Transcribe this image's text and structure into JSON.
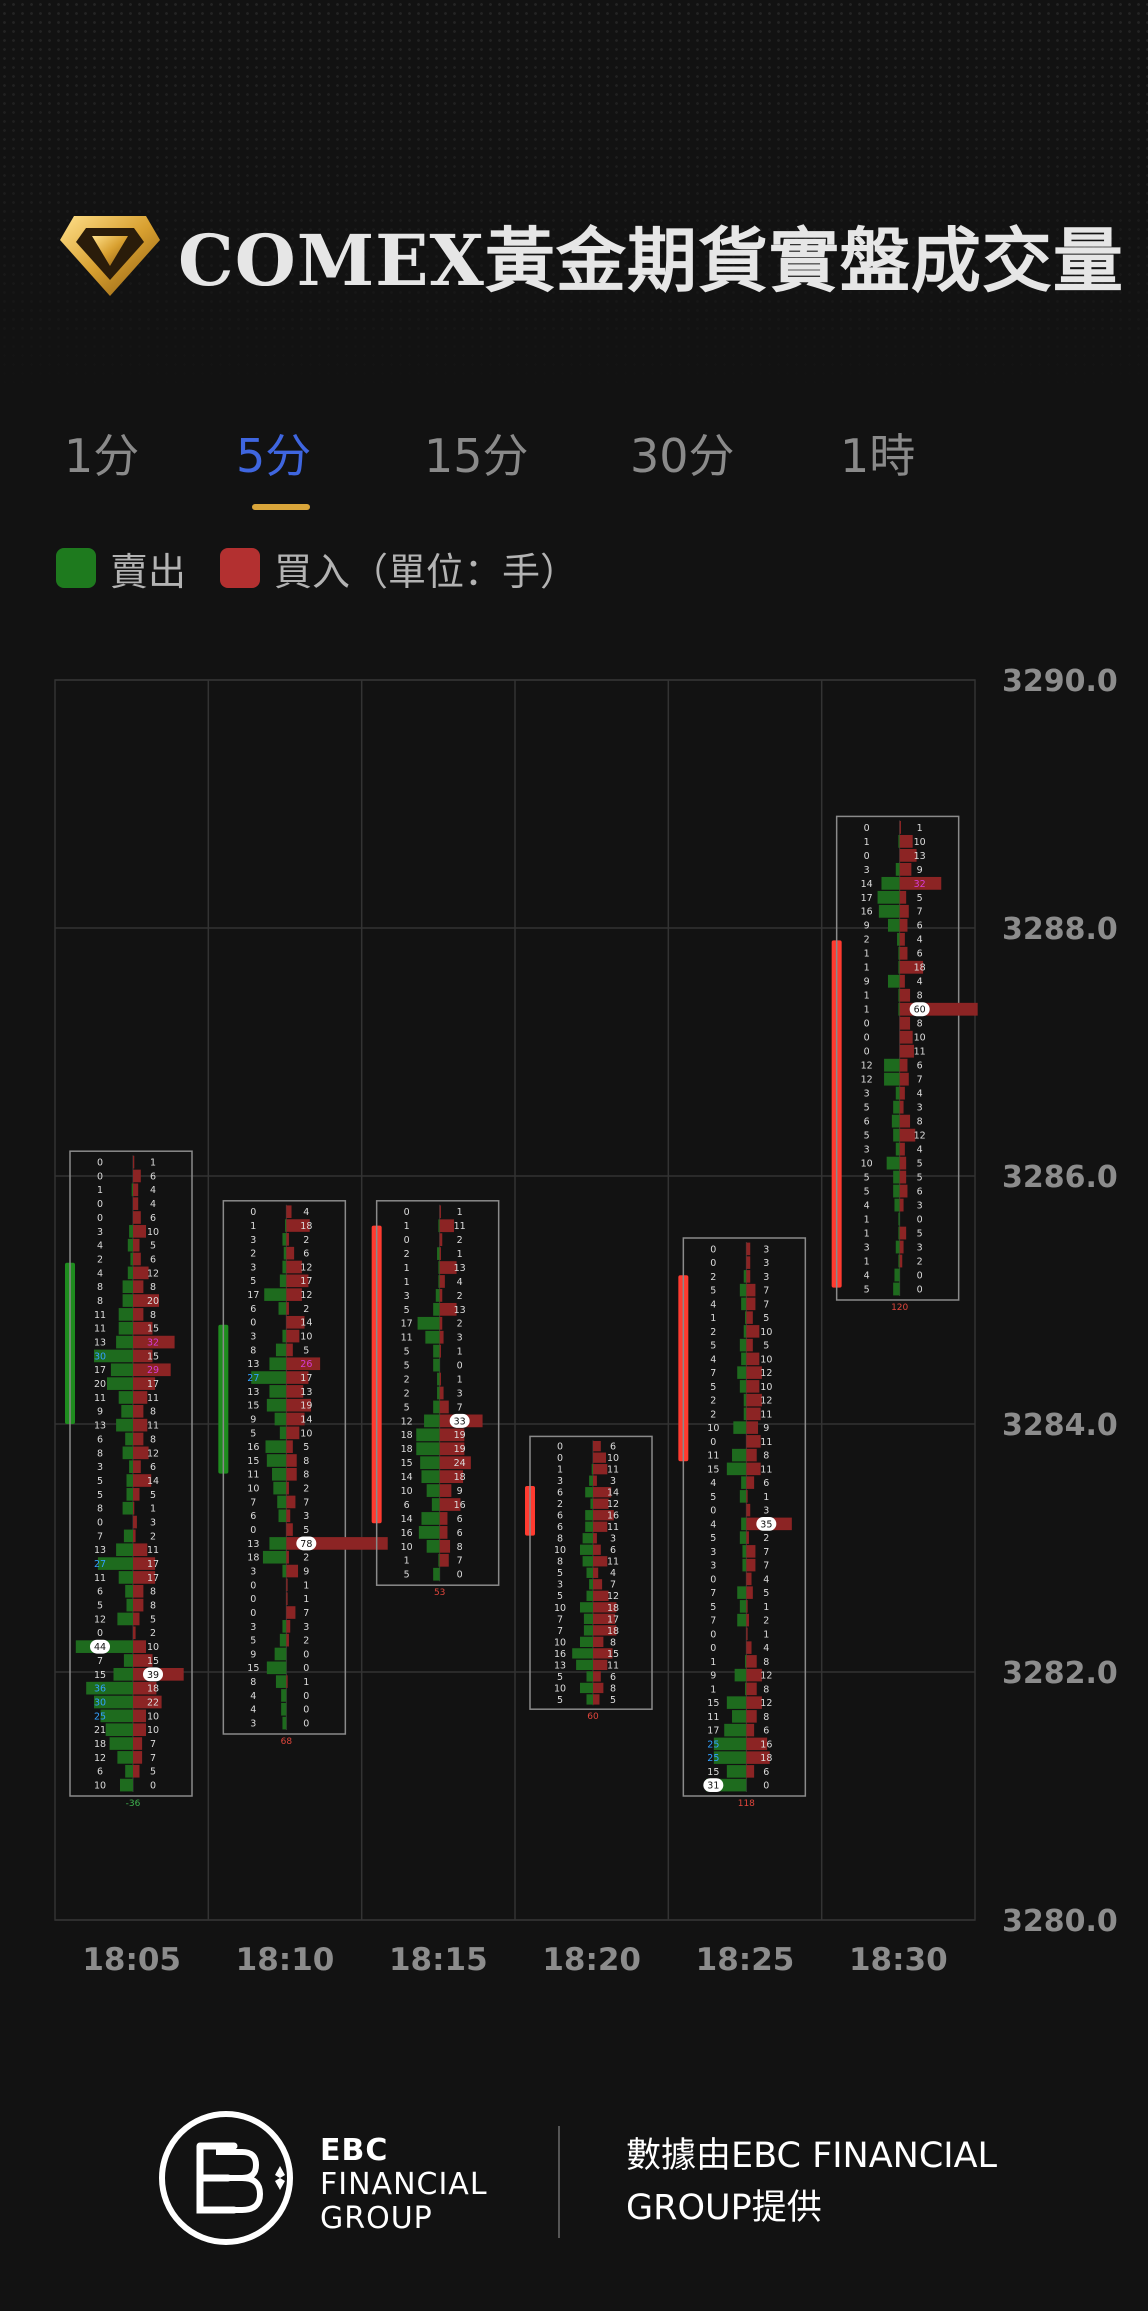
{
  "title": "COMEX黃金期貨實盤成交量",
  "tabs": [
    {
      "label": "1分",
      "active": false
    },
    {
      "label": "5分",
      "active": true
    },
    {
      "label": "15分",
      "active": false
    },
    {
      "label": "30分",
      "active": false
    },
    {
      "label": "1時",
      "active": false
    }
  ],
  "legend": {
    "sell": {
      "label": "賣出",
      "color": "#1e7a1e"
    },
    "buy": {
      "label": "買入（單位：手）",
      "color": "#b33030"
    }
  },
  "footer": {
    "brand_line1": "EBC",
    "brand_line2": "FINANCIAL",
    "brand_line3": "GROUP",
    "provider": "數據由EBC FINANCIAL GROUP提供"
  },
  "chart_data": {
    "type": "footprint",
    "y_axis_ticks": [
      "3290.0",
      "3288.0",
      "3286.0",
      "3284.0",
      "3282.0",
      "3280.0"
    ],
    "ylim": [
      3280.0,
      3290.0
    ],
    "categories": [
      "18:05",
      "18:10",
      "18:15",
      "18:20",
      "18:25",
      "18:30"
    ],
    "grid": true,
    "colors": {
      "up": "#ff3b30",
      "down": "#1e8c1e",
      "sell_bar": "#1e6b1e",
      "buy_bar": "#8c2424",
      "max_sell_label": "#33a0ff",
      "max_buy_label": "#d63cd6"
    },
    "candles": [
      {
        "time": "18:05",
        "open": 3285.3,
        "close": 3284.0,
        "high": 3285.3,
        "low": 3284.0,
        "box_top": 3286.2,
        "box_bottom": 3281.0,
        "delta": "-36",
        "rows": [
          [
            0,
            1
          ],
          [
            0,
            6
          ],
          [
            1,
            4
          ],
          [
            0,
            4
          ],
          [
            0,
            6
          ],
          [
            3,
            10
          ],
          [
            4,
            5
          ],
          [
            2,
            6
          ],
          [
            4,
            12
          ],
          [
            8,
            8
          ],
          [
            8,
            20
          ],
          [
            11,
            8
          ],
          [
            11,
            15
          ],
          [
            13,
            32
          ],
          [
            30,
            15
          ],
          [
            17,
            29
          ],
          [
            20,
            17
          ],
          [
            11,
            11
          ],
          [
            9,
            8
          ],
          [
            13,
            11
          ],
          [
            6,
            8
          ],
          [
            8,
            12
          ],
          [
            3,
            6
          ],
          [
            5,
            14
          ],
          [
            5,
            5
          ],
          [
            8,
            1
          ],
          [
            0,
            3
          ],
          [
            7,
            2
          ],
          [
            13,
            11
          ],
          [
            27,
            17
          ],
          [
            11,
            17
          ],
          [
            6,
            8
          ],
          [
            5,
            8
          ],
          [
            12,
            5
          ],
          [
            0,
            2
          ],
          [
            44,
            10
          ],
          [
            7,
            15
          ],
          [
            15,
            39
          ],
          [
            36,
            18
          ],
          [
            30,
            22
          ],
          [
            25,
            10
          ],
          [
            21,
            10
          ],
          [
            18,
            7
          ],
          [
            12,
            7
          ],
          [
            6,
            5
          ],
          [
            10,
            0
          ]
        ]
      },
      {
        "time": "18:10",
        "open": 3284.8,
        "close": 3283.6,
        "high": 3285.5,
        "low": 3283.6,
        "box_top": 3285.8,
        "box_bottom": 3281.5,
        "delta": "68",
        "rows": [
          [
            0,
            4
          ],
          [
            1,
            18
          ],
          [
            3,
            2
          ],
          [
            2,
            6
          ],
          [
            3,
            12
          ],
          [
            5,
            17
          ],
          [
            17,
            12
          ],
          [
            6,
            2
          ],
          [
            0,
            14
          ],
          [
            3,
            10
          ],
          [
            8,
            5
          ],
          [
            13,
            26
          ],
          [
            27,
            17
          ],
          [
            13,
            13
          ],
          [
            15,
            19
          ],
          [
            9,
            14
          ],
          [
            5,
            10
          ],
          [
            16,
            5
          ],
          [
            15,
            8
          ],
          [
            11,
            8
          ],
          [
            10,
            2
          ],
          [
            7,
            7
          ],
          [
            6,
            3
          ],
          [
            0,
            5
          ],
          [
            13,
            78
          ],
          [
            18,
            2
          ],
          [
            3,
            9
          ],
          [
            0,
            1
          ],
          [
            0,
            1
          ],
          [
            0,
            7
          ],
          [
            3,
            3
          ],
          [
            5,
            2
          ],
          [
            9,
            0
          ],
          [
            15,
            0
          ],
          [
            8,
            1
          ],
          [
            4,
            0
          ],
          [
            4,
            0
          ],
          [
            3,
            0
          ]
        ]
      },
      {
        "time": "18:15",
        "open": 3283.2,
        "close": 3285.6,
        "high": 3285.6,
        "low": 3283.2,
        "box_top": 3285.8,
        "box_bottom": 3282.7,
        "delta": "53",
        "rows": [
          [
            0,
            1
          ],
          [
            1,
            11
          ],
          [
            0,
            2
          ],
          [
            2,
            1
          ],
          [
            1,
            13
          ],
          [
            1,
            4
          ],
          [
            3,
            2
          ],
          [
            5,
            13
          ],
          [
            17,
            2
          ],
          [
            11,
            3
          ],
          [
            5,
            1
          ],
          [
            5,
            0
          ],
          [
            2,
            1
          ],
          [
            2,
            3
          ],
          [
            5,
            7
          ],
          [
            12,
            33
          ],
          [
            18,
            19
          ],
          [
            18,
            19
          ],
          [
            15,
            24
          ],
          [
            14,
            18
          ],
          [
            10,
            9
          ],
          [
            6,
            16
          ],
          [
            14,
            6
          ],
          [
            16,
            6
          ],
          [
            10,
            8
          ],
          [
            1,
            7
          ],
          [
            5,
            0
          ]
        ]
      },
      {
        "time": "18:20",
        "open": 3283.1,
        "close": 3283.5,
        "high": 3283.6,
        "low": 3283.1,
        "box_top": 3283.9,
        "box_bottom": 3281.7,
        "delta": "60",
        "rows": [
          [
            0,
            6
          ],
          [
            0,
            10
          ],
          [
            1,
            11
          ],
          [
            3,
            3
          ],
          [
            6,
            14
          ],
          [
            2,
            12
          ],
          [
            6,
            16
          ],
          [
            6,
            11
          ],
          [
            8,
            3
          ],
          [
            10,
            6
          ],
          [
            8,
            11
          ],
          [
            5,
            4
          ],
          [
            3,
            7
          ],
          [
            5,
            12
          ],
          [
            10,
            18
          ],
          [
            7,
            17
          ],
          [
            7,
            18
          ],
          [
            10,
            8
          ],
          [
            16,
            15
          ],
          [
            13,
            11
          ],
          [
            5,
            6
          ],
          [
            10,
            8
          ],
          [
            5,
            5
          ]
        ]
      },
      {
        "time": "18:25",
        "open": 3283.7,
        "close": 3285.2,
        "high": 3285.2,
        "low": 3283.7,
        "box_top": 3285.5,
        "box_bottom": 3281.0,
        "delta": "118",
        "rows": [
          [
            0,
            3
          ],
          [
            0,
            3
          ],
          [
            2,
            3
          ],
          [
            5,
            7
          ],
          [
            4,
            7
          ],
          [
            1,
            5
          ],
          [
            2,
            10
          ],
          [
            5,
            5
          ],
          [
            4,
            10
          ],
          [
            7,
            12
          ],
          [
            5,
            10
          ],
          [
            2,
            12
          ],
          [
            2,
            11
          ],
          [
            10,
            9
          ],
          [
            0,
            11
          ],
          [
            11,
            8
          ],
          [
            15,
            11
          ],
          [
            4,
            6
          ],
          [
            5,
            1
          ],
          [
            0,
            3
          ],
          [
            4,
            35
          ],
          [
            5,
            2
          ],
          [
            3,
            7
          ],
          [
            3,
            7
          ],
          [
            0,
            4
          ],
          [
            7,
            5
          ],
          [
            5,
            1
          ],
          [
            7,
            2
          ],
          [
            0,
            1
          ],
          [
            0,
            4
          ],
          [
            1,
            8
          ],
          [
            9,
            12
          ],
          [
            1,
            8
          ],
          [
            15,
            12
          ],
          [
            11,
            8
          ],
          [
            17,
            6
          ],
          [
            25,
            16
          ],
          [
            25,
            18
          ],
          [
            15,
            6
          ],
          [
            31,
            0
          ]
        ]
      },
      {
        "time": "18:30",
        "open": 3285.1,
        "close": 3287.9,
        "high": 3287.9,
        "low": 3285.1,
        "box_top": 3288.9,
        "box_bottom": 3285.0,
        "delta": "120",
        "rows": [
          [
            0,
            1
          ],
          [
            1,
            10
          ],
          [
            0,
            13
          ],
          [
            3,
            9
          ],
          [
            14,
            32
          ],
          [
            17,
            5
          ],
          [
            16,
            7
          ],
          [
            9,
            6
          ],
          [
            2,
            4
          ],
          [
            1,
            6
          ],
          [
            1,
            18
          ],
          [
            9,
            4
          ],
          [
            1,
            8
          ],
          [
            1,
            60
          ],
          [
            0,
            8
          ],
          [
            0,
            10
          ],
          [
            0,
            11
          ],
          [
            12,
            6
          ],
          [
            12,
            7
          ],
          [
            3,
            4
          ],
          [
            5,
            3
          ],
          [
            6,
            8
          ],
          [
            5,
            12
          ],
          [
            3,
            4
          ],
          [
            10,
            5
          ],
          [
            5,
            5
          ],
          [
            5,
            6
          ],
          [
            4,
            3
          ],
          [
            1,
            0
          ],
          [
            1,
            5
          ],
          [
            3,
            3
          ],
          [
            1,
            2
          ],
          [
            4,
            0
          ],
          [
            5,
            0
          ]
        ]
      }
    ]
  }
}
